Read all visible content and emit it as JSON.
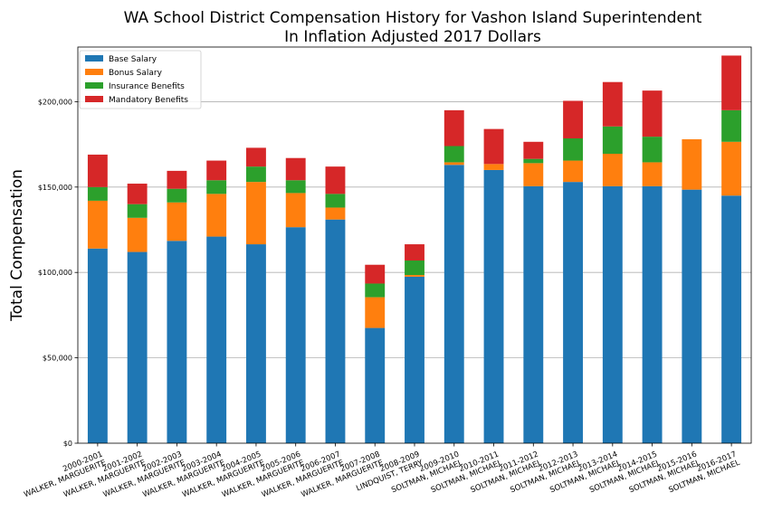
{
  "chart_data": {
    "type": "bar",
    "stacked": true,
    "title": "WA School District Compensation History for Vashon Island Superintendent",
    "subtitle": "In Inflation Adjusted 2017 Dollars",
    "xlabel": "",
    "ylabel": "Total Compensation",
    "ylim": [
      0,
      232000
    ],
    "yticks": [
      0,
      50000,
      100000,
      150000,
      200000
    ],
    "ytick_labels": [
      "$0",
      "$50,000",
      "$100,000",
      "$150,000",
      "$200,000"
    ],
    "grid": "horizontal",
    "legend_position": "top-left",
    "categories": [
      [
        "2000-2001",
        "WALKER, MARGUERITE"
      ],
      [
        "2001-2002",
        "WALKER, MARGUERITE"
      ],
      [
        "2002-2003",
        "WALKER, MARGUERITE"
      ],
      [
        "2003-2004",
        "WALKER, MARGUERITE"
      ],
      [
        "2004-2005",
        "WALKER, MARGUERITE"
      ],
      [
        "2005-2006",
        "WALKER, MARGUERITE"
      ],
      [
        "2006-2007",
        "WALKER, MARGUERITE"
      ],
      [
        "2007-2008",
        "WALKER, MARGUERITE"
      ],
      [
        "2008-2009",
        "LINDQUIST, TERRY"
      ],
      [
        "2009-2010",
        "SOLTMAN, MICHAEL"
      ],
      [
        "2010-2011",
        "SOLTMAN, MICHAEL"
      ],
      [
        "2011-2012",
        "SOLTMAN, MICHAEL"
      ],
      [
        "2012-2013",
        "SOLTMAN, MICHAEL"
      ],
      [
        "2013-2014",
        "SOLTMAN, MICHAEL"
      ],
      [
        "2014-2015",
        "SOLTMAN, MICHAEL"
      ],
      [
        "2015-2016",
        "SOLTMAN, MICHAEL"
      ],
      [
        "2016-2017",
        "SOLTMAN, MICHAEL"
      ]
    ],
    "series": [
      {
        "name": "Base Salary",
        "color": "#1f77b4",
        "values": [
          114000,
          112000,
          118500,
          121000,
          116500,
          126500,
          131000,
          67500,
          97500,
          163000,
          160000,
          150500,
          153000,
          150500,
          150500,
          148500,
          145000
        ]
      },
      {
        "name": "Bonus Salary",
        "color": "#ff7f0e",
        "values": [
          28000,
          20000,
          22500,
          25000,
          36500,
          20000,
          7000,
          18000,
          1000,
          1500,
          3500,
          13500,
          12500,
          19000,
          14000,
          29500,
          31500
        ]
      },
      {
        "name": "Insurance Benefits",
        "color": "#2ca02c",
        "values": [
          8000,
          8000,
          8000,
          8000,
          9000,
          7500,
          8000,
          8000,
          8500,
          9500,
          0,
          2500,
          13000,
          16000,
          15000,
          0,
          18500
        ]
      },
      {
        "name": "Mandatory Benefits",
        "color": "#d62728",
        "values": [
          19000,
          12000,
          10500,
          11500,
          11000,
          13000,
          16000,
          11000,
          9500,
          21000,
          20500,
          10000,
          22000,
          26000,
          27000,
          0,
          32000
        ]
      }
    ]
  }
}
